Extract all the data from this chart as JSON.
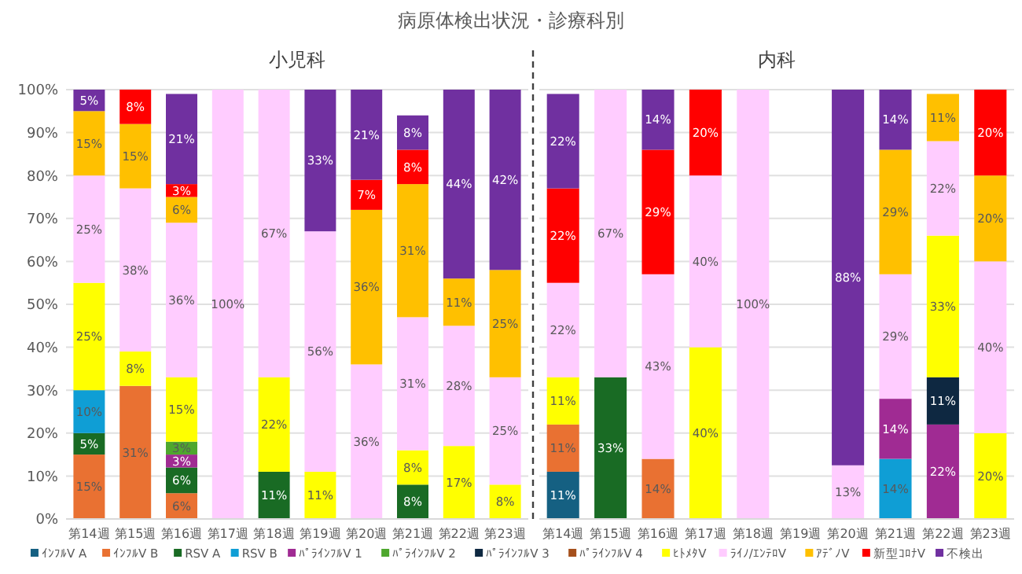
{
  "chart_data": [
    {
      "type": "bar",
      "title": "病原体検出状況・診療科別",
      "subtitle": "小児科",
      "stacked": true,
      "categories": [
        "第14週",
        "第15週",
        "第16週",
        "第17週",
        "第18週",
        "第19週",
        "第20週",
        "第21週",
        "第22週",
        "第23週"
      ],
      "ylim": [
        0,
        100
      ],
      "yticks": [
        {
          "value": 0,
          "label": "0%"
        },
        {
          "value": 10,
          "label": "10%"
        },
        {
          "value": 20,
          "label": "20%"
        },
        {
          "value": 30,
          "label": "30%"
        },
        {
          "value": 40,
          "label": "40%"
        },
        {
          "value": 50,
          "label": "50%"
        },
        {
          "value": 60,
          "label": "60%"
        },
        {
          "value": 70,
          "label": "70%"
        },
        {
          "value": 80,
          "label": "80%"
        },
        {
          "value": 90,
          "label": "90%"
        },
        {
          "value": 100,
          "label": "100%"
        }
      ],
      "grid": "y",
      "legend": "bottom",
      "series": [
        {
          "name": "ｲﾝﾌﾙV A",
          "color": "#156082",
          "values": [
            null,
            null,
            null,
            null,
            null,
            null,
            null,
            null,
            null,
            null
          ],
          "value_labels": [
            null,
            null,
            null,
            null,
            null,
            null,
            null,
            null,
            null,
            null
          ]
        },
        {
          "name": "ｲﾝﾌﾙV B",
          "color": "#e97132",
          "values": [
            15,
            31,
            6,
            null,
            null,
            null,
            null,
            null,
            null,
            null
          ],
          "value_labels": [
            "15%",
            "31%",
            "6%",
            null,
            null,
            null,
            null,
            null,
            null,
            null
          ]
        },
        {
          "name": "RSV A",
          "color": "#196b24",
          "values": [
            5,
            null,
            6,
            null,
            11,
            null,
            null,
            8,
            null,
            null
          ],
          "value_labels": [
            "5%",
            null,
            "6%",
            null,
            "11%",
            null,
            null,
            "8%",
            null,
            null
          ]
        },
        {
          "name": "RSV B",
          "color": "#0f9ed5",
          "values": [
            10,
            null,
            null,
            null,
            null,
            null,
            null,
            null,
            null,
            null
          ],
          "value_labels": [
            "10%",
            null,
            null,
            null,
            null,
            null,
            null,
            null,
            null,
            null
          ]
        },
        {
          "name": "ﾊﾟﾗｲﾝﾌﾙV 1",
          "color": "#a02b93",
          "values": [
            null,
            null,
            3,
            null,
            null,
            null,
            null,
            null,
            null,
            null
          ],
          "value_labels": [
            null,
            null,
            "3%",
            null,
            null,
            null,
            null,
            null,
            null,
            null
          ]
        },
        {
          "name": "ﾊﾟﾗｲﾝﾌﾙV 2",
          "color": "#4ea72e",
          "values": [
            null,
            null,
            3,
            null,
            null,
            null,
            null,
            null,
            null,
            null
          ],
          "value_labels": [
            null,
            null,
            "3%",
            null,
            null,
            null,
            null,
            null,
            null,
            null
          ]
        },
        {
          "name": "ﾊﾟﾗｲﾝﾌﾙV 3",
          "color": "#0e2841",
          "values": [
            null,
            null,
            null,
            null,
            null,
            null,
            null,
            null,
            null,
            null
          ],
          "value_labels": [
            null,
            null,
            null,
            null,
            null,
            null,
            null,
            null,
            null,
            null
          ]
        },
        {
          "name": "ﾊﾟﾗｲﾝﾌﾙV 4",
          "color": "#a5501c",
          "values": [
            null,
            null,
            null,
            null,
            null,
            null,
            null,
            null,
            null,
            null
          ],
          "value_labels": [
            null,
            null,
            null,
            null,
            null,
            null,
            null,
            null,
            null,
            null
          ]
        },
        {
          "name": "ﾋﾄﾒﾀV",
          "color": "#ffff00",
          "values": [
            25,
            8,
            15,
            null,
            22,
            11,
            null,
            8,
            17,
            8
          ],
          "value_labels": [
            "25%",
            "8%",
            "15%",
            null,
            "22%",
            "11%",
            null,
            "8%",
            "17%",
            "8%"
          ]
        },
        {
          "name": "ﾗｲﾉ/ｴﾝﾃﾛV",
          "color": "#ffccff",
          "values": [
            25,
            38,
            36,
            100,
            67,
            56,
            36,
            31,
            28,
            25
          ],
          "value_labels": [
            "25%",
            "38%",
            "36%",
            "100%",
            "67%",
            "56%",
            "36%",
            "31%",
            "28%",
            "25%"
          ]
        },
        {
          "name": "ｱﾃﾞﾉV",
          "color": "#ffc000",
          "values": [
            15,
            15,
            6,
            null,
            null,
            null,
            36,
            31,
            11,
            25
          ],
          "value_labels": [
            "15%",
            "15%",
            "6%",
            null,
            null,
            null,
            "36%",
            "31%",
            "11%",
            "25%"
          ]
        },
        {
          "name": "新型ｺﾛﾅV",
          "color": "#ff0000",
          "values": [
            null,
            8,
            3,
            null,
            null,
            null,
            7,
            8,
            null,
            null
          ],
          "value_labels": [
            null,
            "8%",
            "3%",
            null,
            null,
            null,
            "7%",
            "8%",
            null,
            null
          ]
        },
        {
          "name": "不検出",
          "color": "#7030a0",
          "values": [
            5,
            null,
            21,
            null,
            null,
            33,
            21,
            8,
            44,
            42
          ],
          "value_labels": [
            "5%",
            null,
            "21%",
            null,
            null,
            "33%",
            "21%",
            "8%",
            "44%",
            "42%"
          ]
        }
      ]
    },
    {
      "type": "bar",
      "subtitle": "内科",
      "stacked": true,
      "categories": [
        "第14週",
        "第15週",
        "第16週",
        "第17週",
        "第18週",
        "第19週",
        "第20週",
        "第21週",
        "第22週",
        "第23週"
      ],
      "ylim": [
        0,
        100
      ],
      "yticks": [
        0,
        10,
        20,
        30,
        40,
        50,
        60,
        70,
        80,
        90,
        100
      ],
      "tick_labels": "x",
      "grid": "y",
      "series": [
        {
          "color": "#156082",
          "values": [
            11,
            null,
            null,
            null,
            null,
            null,
            null,
            null,
            null,
            null
          ],
          "value_labels": [
            "11%",
            null,
            null,
            null,
            null,
            null,
            null,
            null,
            null,
            null
          ]
        },
        {
          "color": "#e97132",
          "values": [
            11,
            null,
            14,
            null,
            null,
            null,
            null,
            null,
            null,
            null
          ],
          "value_labels": [
            "11%",
            null,
            "14%",
            null,
            null,
            null,
            null,
            null,
            null,
            null
          ]
        },
        {
          "color": "#196b24",
          "values": [
            null,
            33,
            null,
            null,
            null,
            null,
            null,
            null,
            null,
            null
          ],
          "value_labels": [
            null,
            "33%",
            null,
            null,
            null,
            null,
            null,
            null,
            null,
            null
          ]
        },
        {
          "color": "#0f9ed5",
          "values": [
            null,
            null,
            null,
            null,
            null,
            null,
            null,
            14,
            null,
            null
          ],
          "value_labels": [
            null,
            null,
            null,
            null,
            null,
            null,
            null,
            "14%",
            null,
            null
          ]
        },
        {
          "color": "#a02b93",
          "values": [
            null,
            null,
            null,
            null,
            null,
            null,
            null,
            14,
            22,
            null
          ],
          "value_labels": [
            null,
            null,
            null,
            null,
            null,
            null,
            null,
            "14%",
            "22%",
            null
          ]
        },
        {
          "color": "#0e2841",
          "values": [
            null,
            null,
            null,
            null,
            null,
            null,
            null,
            null,
            11,
            null
          ],
          "value_labels": [
            null,
            null,
            null,
            null,
            null,
            null,
            null,
            null,
            "11%",
            null
          ]
        },
        {
          "color": "#ffff00",
          "values": [
            11,
            null,
            null,
            40,
            null,
            null,
            null,
            null,
            33,
            20
          ],
          "value_labels": [
            "11%",
            null,
            null,
            "40%",
            null,
            null,
            null,
            null,
            "33%",
            "20%"
          ]
        },
        {
          "color": "#ffccff",
          "values": [
            22,
            67,
            43,
            40,
            100,
            null,
            12.5,
            29,
            22,
            40
          ],
          "value_labels": [
            "22%",
            "67%",
            "43%",
            "40%",
            "100%",
            null,
            "13%",
            "29%",
            "22%",
            "40%"
          ]
        },
        {
          "color": "#ffc000",
          "values": [
            null,
            null,
            null,
            null,
            null,
            null,
            null,
            29,
            11,
            20
          ],
          "value_labels": [
            null,
            null,
            null,
            null,
            null,
            null,
            null,
            "29%",
            "11%",
            "20%"
          ]
        },
        {
          "color": "#ff0000",
          "values": [
            22,
            null,
            29,
            20,
            null,
            null,
            null,
            null,
            null,
            20
          ],
          "value_labels": [
            "22%",
            null,
            "29%",
            "20%",
            null,
            null,
            null,
            null,
            null,
            "20%"
          ]
        },
        {
          "color": "#7030a0",
          "values": [
            22,
            null,
            14,
            null,
            null,
            null,
            87.5,
            14,
            null,
            null
          ],
          "value_labels": [
            "22%",
            null,
            "14%",
            null,
            null,
            null,
            "88%",
            "14%",
            null,
            null
          ]
        }
      ]
    }
  ]
}
